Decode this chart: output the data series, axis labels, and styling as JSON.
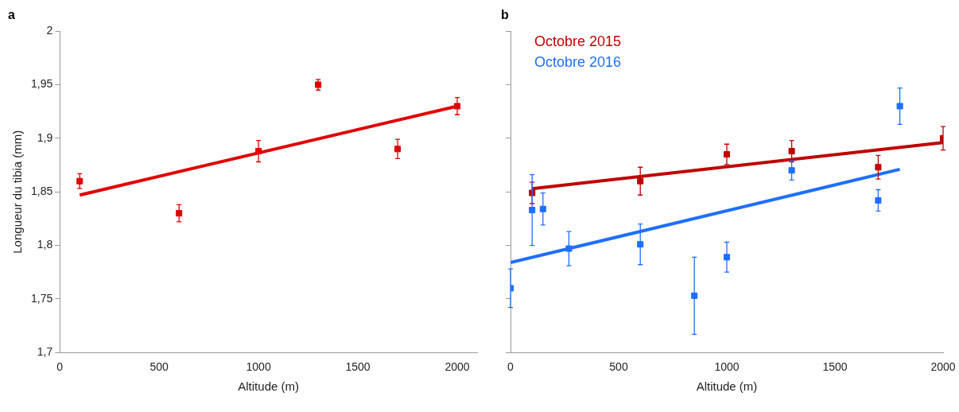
{
  "chart_data": [
    {
      "type": "scatter",
      "title": "a",
      "xlabel": "Altitude (m)",
      "ylabel": "Longueur du tibia (mm)",
      "xlim": [
        0,
        2100
      ],
      "ylim": [
        1.7,
        2
      ],
      "xticks": [
        0,
        500,
        1000,
        1500,
        2000
      ],
      "yticks": [
        {
          "value": 1.7,
          "label": "1,7"
        },
        {
          "value": 1.75,
          "label": "1,75"
        },
        {
          "value": 1.8,
          "label": "1,8"
        },
        {
          "value": 1.85,
          "label": "1,85"
        },
        {
          "value": 1.9,
          "label": "1,9"
        },
        {
          "value": 1.95,
          "label": "1,95"
        },
        2
      ],
      "grid": false,
      "series": [
        {
          "type": "scatter",
          "marker": "square",
          "color": "#e00000",
          "x": [
            100,
            600,
            1000,
            1300,
            1700,
            2000
          ],
          "values": [
            1.86,
            1.83,
            1.888,
            1.95,
            1.89,
            1.93
          ],
          "errors": [
            0.007,
            0.008,
            0.01,
            0.005,
            0.009,
            0.008
          ]
        },
        {
          "type": "line",
          "color": "#e00000",
          "x": [
            100,
            2000
          ],
          "values": [
            1.847,
            1.93
          ]
        }
      ]
    },
    {
      "type": "scatter",
      "title": "b",
      "xlabel": "Altitude (m)",
      "xlim": [
        0,
        2000
      ],
      "ylim": [
        1.7,
        2
      ],
      "xticks": [
        0,
        500,
        1000,
        1500,
        2000
      ],
      "yticks": [
        1.7,
        1.75,
        1.8,
        1.85,
        1.9,
        1.95,
        2
      ],
      "tick_labels": "x",
      "grid": false,
      "series": [
        {
          "type": "scatter",
          "marker": "square",
          "name": "Octobre 2015",
          "color": "#c00000",
          "x": [
            100,
            600,
            1000,
            1300,
            1700,
            2000
          ],
          "values": [
            1.849,
            1.86,
            1.885,
            1.888,
            1.873,
            1.9
          ],
          "errors": [
            0.01,
            0.013,
            0.0095,
            0.01,
            0.011,
            0.011
          ]
        },
        {
          "type": "scatter",
          "marker": "square",
          "name": "Octobre 2016",
          "color": "#1f6fff",
          "x": [
            0,
            100,
            150,
            270,
            600,
            850,
            1000,
            1300,
            1700,
            1800
          ],
          "values": [
            1.76,
            1.833,
            1.834,
            1.797,
            1.801,
            1.753,
            1.789,
            1.87,
            1.842,
            1.93
          ],
          "errors": [
            0.018,
            0.033,
            0.015,
            0.016,
            0.019,
            0.036,
            0.014,
            0.009,
            0.01,
            0.017
          ]
        },
        {
          "type": "line",
          "color": "#c00000",
          "x": [
            100,
            2000
          ],
          "values": [
            1.853,
            1.896
          ]
        },
        {
          "type": "line",
          "color": "#1f6fff",
          "x": [
            0,
            1800
          ],
          "values": [
            1.784,
            1.871
          ]
        }
      ]
    }
  ]
}
